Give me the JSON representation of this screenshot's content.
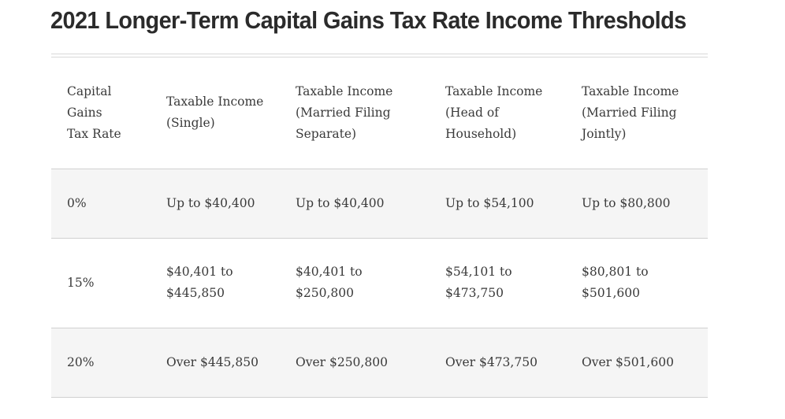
{
  "page": {
    "title": "2021 Longer-Term Capital Gains Tax Rate Income Thresholds"
  },
  "table": {
    "headers": [
      [
        "Capital",
        "Gains",
        "Tax Rate"
      ],
      [
        "Taxable Income",
        "(Single)"
      ],
      [
        "Taxable Income",
        "(Married Filing",
        "Separate)"
      ],
      [
        "Taxable Income",
        "(Head of",
        "Household)"
      ],
      [
        "Taxable Income",
        "(Married Filing",
        "Jointly)"
      ]
    ],
    "rows": [
      [
        [
          "0%"
        ],
        [
          "Up to $40,400"
        ],
        [
          "Up to $40,400"
        ],
        [
          "Up to $54,100"
        ],
        [
          "Up to $80,800"
        ]
      ],
      [
        [
          "15%"
        ],
        [
          "$40,401 to",
          "$445,850"
        ],
        [
          "$40,401 to",
          "$250,800"
        ],
        [
          "$54,101 to",
          "$473,750"
        ],
        [
          "$80,801 to",
          "$501,600"
        ]
      ],
      [
        [
          "20%"
        ],
        [
          "Over $445,850"
        ],
        [
          "Over $250,800"
        ],
        [
          "Over $473,750"
        ],
        [
          "Over $501,600"
        ]
      ]
    ]
  }
}
